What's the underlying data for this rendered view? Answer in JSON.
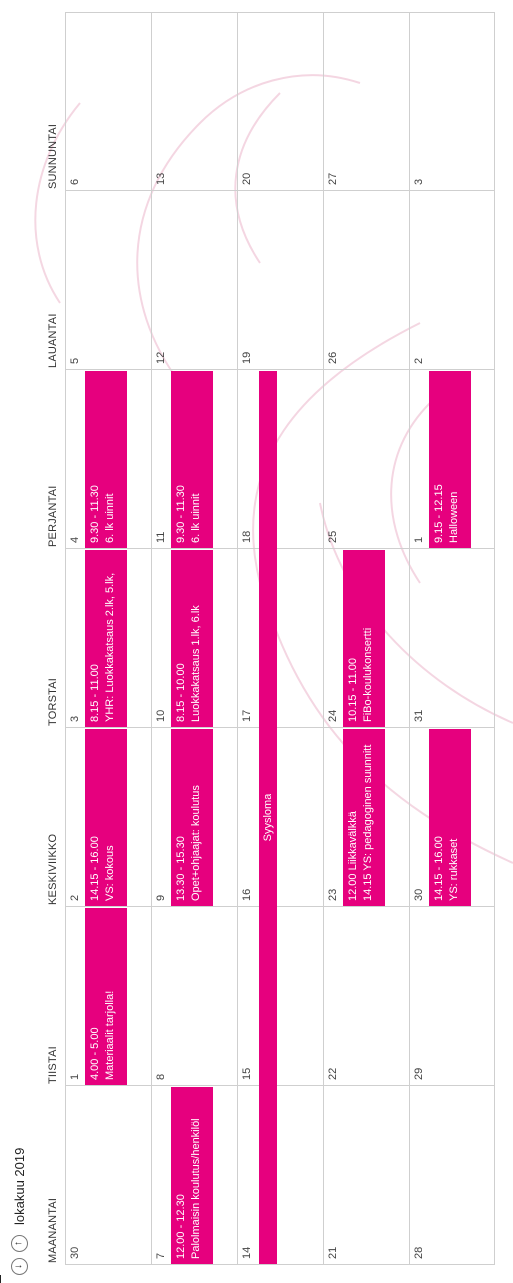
{
  "header": {
    "month_title": "lokakuu 2019"
  },
  "weekdays": [
    "MAANANTAI",
    "TIISTAI",
    "KESKIVIIKKO",
    "TORSTAI",
    "PERJANTAI",
    "LAUANTAI",
    "SUNNUNTAI"
  ],
  "weeks": [
    [
      "30",
      "1",
      "2",
      "3",
      "4",
      "5",
      "6"
    ],
    [
      "7",
      "8",
      "9",
      "10",
      "11",
      "12",
      "13"
    ],
    [
      "14",
      "15",
      "16",
      "17",
      "18",
      "19",
      "20"
    ],
    [
      "21",
      "22",
      "23",
      "24",
      "25",
      "26",
      "27"
    ],
    [
      "28",
      "29",
      "30",
      "31",
      "1",
      "2",
      "3"
    ]
  ],
  "events": [
    {
      "week": 0,
      "day": 1,
      "lines": [
        "4.00 - 5.00",
        "Materiaalit tarjolla!"
      ]
    },
    {
      "week": 0,
      "day": 2,
      "lines": [
        "14.15 - 16.00",
        "VS: kokous"
      ]
    },
    {
      "week": 0,
      "day": 3,
      "lines": [
        "8.15 - 11.00",
        "YHR: Luokkakatsaus 2.lk, 5.lk,"
      ]
    },
    {
      "week": 0,
      "day": 4,
      "lines": [
        "9.30 - 11.30",
        "6. lk uinnit"
      ]
    },
    {
      "week": 1,
      "day": 0,
      "lines": [
        "12.00 - 12.30",
        "Palolmaisin koulutus/henkilöl"
      ]
    },
    {
      "week": 1,
      "day": 2,
      "lines": [
        "13.30 - 15.30",
        "Opet+ohjaajat: koulutus"
      ]
    },
    {
      "week": 1,
      "day": 3,
      "lines": [
        "8.15 - 10.00",
        "Luokkakatsaus 1.lk, 6.lk"
      ]
    },
    {
      "week": 1,
      "day": 4,
      "lines": [
        "9.30 - 11.30",
        "6. lk uinnit"
      ]
    },
    {
      "week": 2,
      "day": 0,
      "span": 5,
      "lines": [
        "Syysloma"
      ]
    },
    {
      "week": 3,
      "day": 2,
      "lines": [
        "12.00 Liikkavälkkä",
        "14.15 YS: pedagoginen suunnitt"
      ]
    },
    {
      "week": 3,
      "day": 3,
      "lines": [
        "10.15 - 11.00",
        "FiBo-koulukonsertti"
      ]
    },
    {
      "week": 4,
      "day": 2,
      "lines": [
        "14.15 - 16.00",
        "YS: rukkaset"
      ]
    },
    {
      "week": 4,
      "day": 4,
      "lines": [
        "9.15 - 12.15",
        "Halloween"
      ]
    }
  ]
}
